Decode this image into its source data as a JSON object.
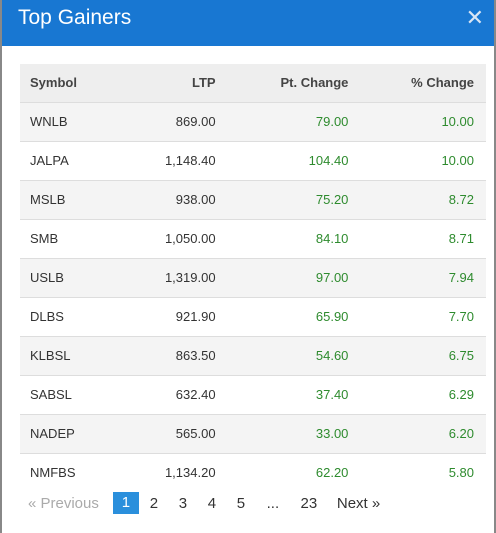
{
  "modal": {
    "title": "Top Gainers",
    "close_label": "✕"
  },
  "table": {
    "headers": [
      "Symbol",
      "LTP",
      "Pt. Change",
      "% Change"
    ],
    "rows": [
      [
        "WNLB",
        "869.00",
        "79.00",
        "10.00"
      ],
      [
        "JALPA",
        "1,148.40",
        "104.40",
        "10.00"
      ],
      [
        "MSLB",
        "938.00",
        "75.20",
        "8.72"
      ],
      [
        "SMB",
        "1,050.00",
        "84.10",
        "8.71"
      ],
      [
        "USLB",
        "1,319.00",
        "97.00",
        "7.94"
      ],
      [
        "DLBS",
        "921.90",
        "65.90",
        "7.70"
      ],
      [
        "KLBSL",
        "863.50",
        "54.60",
        "6.75"
      ],
      [
        "SABSL",
        "632.40",
        "37.40",
        "6.29"
      ],
      [
        "NADEP",
        "565.00",
        "33.00",
        "6.20"
      ],
      [
        "NMFBS",
        "1,134.20",
        "62.20",
        "5.80"
      ]
    ]
  },
  "pagination": {
    "prev": "« Previous",
    "pages": [
      "1",
      "2",
      "3",
      "4",
      "5",
      "...",
      "23"
    ],
    "current": "1",
    "next": "Next »"
  },
  "colors": {
    "header": "#1877d2",
    "positive": "#2e8b2e",
    "active_page": "#2a8fdc"
  }
}
